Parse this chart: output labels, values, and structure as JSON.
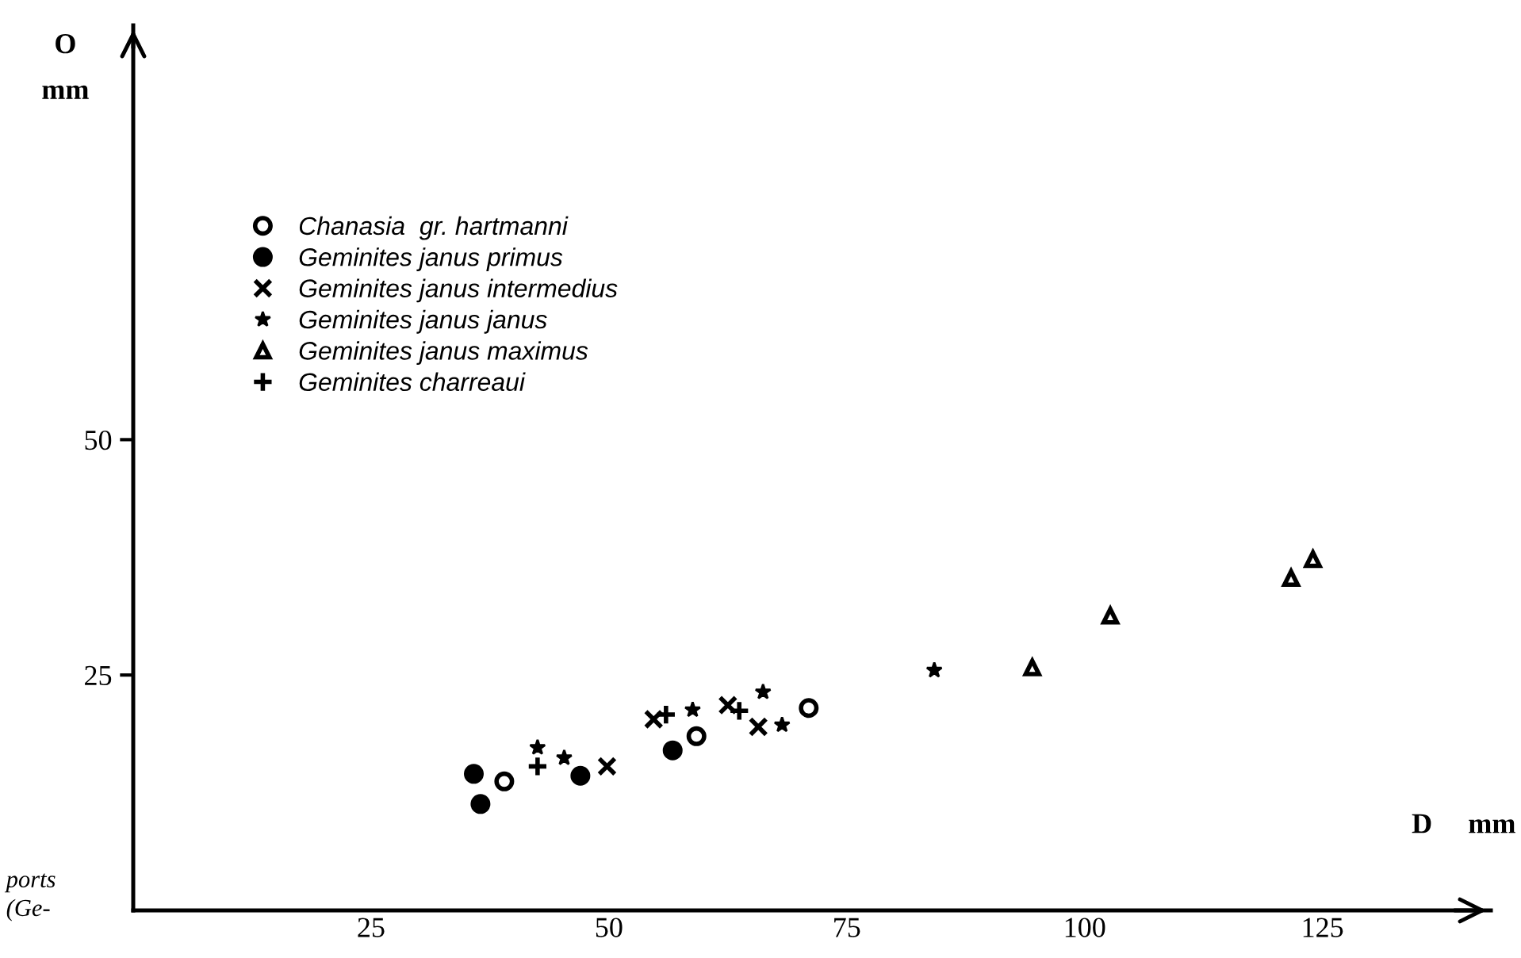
{
  "chart_data": {
    "type": "scatter",
    "xlabel": "D     mm",
    "ylabel": "O\nmm",
    "xlim": [
      0,
      142.7
    ],
    "ylim": [
      0,
      94
    ],
    "xticks": [
      25,
      50,
      75,
      100,
      125
    ],
    "yticks": [
      25,
      50
    ],
    "grid": false,
    "legend": "top left",
    "series": [
      {
        "name": "Chanasia  gr. hartmanni",
        "color": "#000000",
        "marker": "circle-open",
        "x": [
          39,
          59.2,
          71
        ],
        "values": [
          13.7,
          18.5,
          21.5
        ]
      },
      {
        "name": "Geminites janus primus",
        "color": "#000000",
        "marker": "circle",
        "x": [
          35.8,
          36.5,
          47,
          56.7
        ],
        "values": [
          14.5,
          11.3,
          14.3,
          17
        ]
      },
      {
        "name": "Geminites janus intermedius",
        "color": "#000000",
        "marker": "cross",
        "x": [
          49.8,
          54.7,
          62.5,
          65.7
        ],
        "values": [
          15.3,
          20.3,
          21.8,
          19.5
        ]
      },
      {
        "name": "Geminites janus janus",
        "color": "#000000",
        "marker": "star",
        "x": [
          42.5,
          45.3,
          58.8,
          66.2,
          68.2,
          84.2
        ],
        "values": [
          17.3,
          16.2,
          21.3,
          23.2,
          19.7,
          25.5
        ]
      },
      {
        "name": "Geminites janus maximus",
        "color": "#000000",
        "marker": "triangle-open",
        "x": [
          94.5,
          102.7,
          121.7,
          124
        ],
        "values": [
          25.8,
          31.3,
          35.3,
          37.3
        ]
      },
      {
        "name": "Geminites charreaui",
        "color": "#000000",
        "marker": "plus",
        "x": [
          42.5,
          56,
          63.7
        ],
        "values": [
          15.3,
          20.8,
          21.2
        ]
      }
    ],
    "annotations": [
      "ports",
      "(Ge-"
    ]
  }
}
